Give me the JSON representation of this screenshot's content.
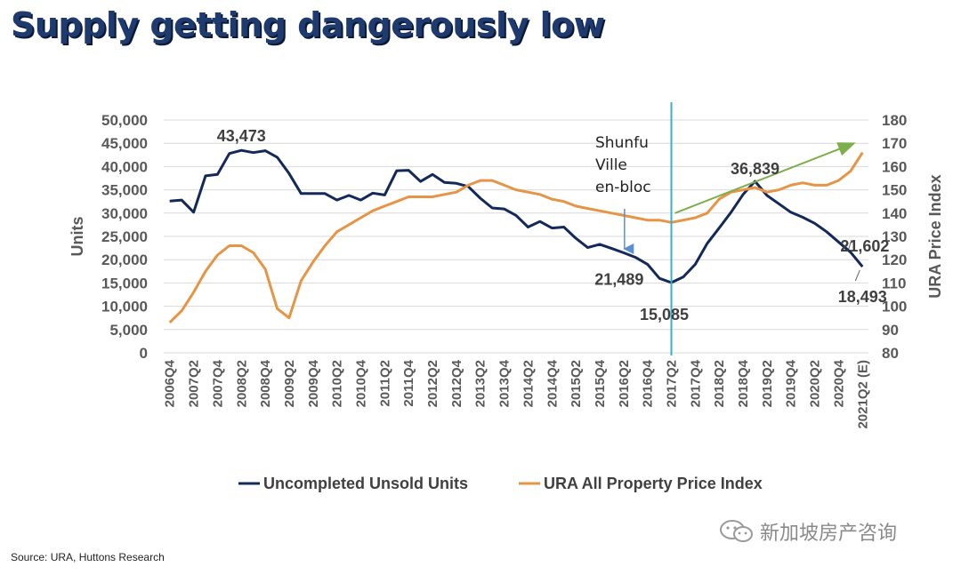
{
  "title": "Supply getting dangerously low",
  "source": "Source: URA, Huttons Research",
  "watermark": "新加坡房产咨询",
  "colors": {
    "units": "#13295a",
    "ppi": "#e69445",
    "event_line": "#39b0c8",
    "trend": "#7cae4a",
    "grid": "#d9d9d9"
  },
  "chart_data": {
    "type": "line",
    "title": "Supply getting dangerously low",
    "xlabel": "",
    "ylabel": "Units",
    "y2label": "URA Price Index",
    "ylim": [
      0,
      50000
    ],
    "y2lim": [
      80,
      180
    ],
    "yticks": [
      "0",
      "5,000",
      "10,000",
      "15,000",
      "20,000",
      "25,000",
      "30,000",
      "35,000",
      "40,000",
      "45,000",
      "50,000"
    ],
    "y2ticks": [
      "80",
      "90",
      "100",
      "110",
      "120",
      "130",
      "140",
      "150",
      "160",
      "170",
      "180"
    ],
    "categories": [
      "2006Q4",
      "2007Q1",
      "2007Q2",
      "2007Q3",
      "2007Q4",
      "2008Q1",
      "2008Q2",
      "2008Q3",
      "2008Q4",
      "2009Q1",
      "2009Q2",
      "2009Q3",
      "2009Q4",
      "2010Q1",
      "2010Q2",
      "2010Q3",
      "2010Q4",
      "2011Q1",
      "2011Q2",
      "2011Q3",
      "2011Q4",
      "2012Q1",
      "2012Q2",
      "2012Q3",
      "2012Q4",
      "2013Q1",
      "2013Q2",
      "2013Q3",
      "2013Q4",
      "2014Q1",
      "2014Q2",
      "2014Q3",
      "2014Q4",
      "2015Q1",
      "2015Q2",
      "2015Q3",
      "2015Q4",
      "2016Q1",
      "2016Q2",
      "2016Q3",
      "2016Q4",
      "2017Q1",
      "2017Q2",
      "2017Q3",
      "2017Q4",
      "2018Q1",
      "2018Q2",
      "2018Q3",
      "2018Q4",
      "2019Q1",
      "2019Q2",
      "2019Q3",
      "2019Q4",
      "2020Q1",
      "2020Q2",
      "2020Q3",
      "2020Q4",
      "2021Q1",
      "2021Q2 (E)"
    ],
    "xtick_labels": [
      "2006Q4",
      "2007Q2",
      "2007Q4",
      "2008Q2",
      "2008Q4",
      "2009Q2",
      "2009Q4",
      "2010Q2",
      "2010Q4",
      "2011Q2",
      "2011Q4",
      "2012Q2",
      "2012Q4",
      "2013Q2",
      "2013Q4",
      "2014Q2",
      "2014Q4",
      "2015Q2",
      "2015Q4",
      "2016Q2",
      "2016Q4",
      "2017Q2",
      "2017Q4",
      "2018Q2",
      "2018Q4",
      "2019Q2",
      "2019Q4",
      "2020Q2",
      "2020Q4",
      "2021Q2 (E)"
    ],
    "series": [
      {
        "name": "Uncompleted Unsold Units",
        "axis": "left",
        "values": [
          32600,
          32800,
          30200,
          38000,
          38300,
          42800,
          43473,
          43000,
          43400,
          42000,
          38500,
          34200,
          34200,
          34200,
          32800,
          33800,
          32800,
          34300,
          33900,
          39100,
          39200,
          36800,
          38300,
          36600,
          36400,
          35700,
          33200,
          31100,
          30900,
          29500,
          27000,
          28200,
          26800,
          27000,
          24600,
          22600,
          23300,
          22400,
          21489,
          20500,
          19000,
          16000,
          15085,
          16300,
          19000,
          23500,
          26800,
          30200,
          34000,
          36839,
          33800,
          32000,
          30200,
          29100,
          27800,
          26000,
          23800,
          21602,
          18493
        ]
      },
      {
        "name": "URA All Property Price Index",
        "axis": "right",
        "values": [
          93,
          98,
          106,
          115,
          122,
          126,
          126,
          123,
          116,
          99,
          95,
          111,
          119,
          126,
          132,
          135,
          138,
          141,
          143,
          145,
          147,
          147,
          147,
          148,
          149,
          152,
          154,
          154,
          152,
          150,
          149,
          148,
          146,
          145,
          143,
          142,
          141,
          140,
          139,
          138,
          137,
          137,
          136,
          137,
          138,
          140,
          146,
          149,
          150,
          151,
          149,
          150,
          152,
          153,
          152,
          152,
          154,
          158,
          166
        ]
      }
    ],
    "annotations": [
      {
        "text": "43,473",
        "series": "Uncompleted Unsold Units",
        "category": "2008Q2"
      },
      {
        "text": "21,489",
        "series": "Uncompleted Unsold Units",
        "category": "2016Q2"
      },
      {
        "text": "15,085",
        "series": "Uncompleted Unsold Units",
        "category": "2017Q2"
      },
      {
        "text": "36,839",
        "series": "Uncompleted Unsold Units",
        "category": "2019Q1"
      },
      {
        "text": "21,602",
        "series": "Uncompleted Unsold Units",
        "category": "2021Q1"
      },
      {
        "text": "18,493",
        "series": "Uncompleted Unsold Units",
        "category": "2021Q2 (E)"
      }
    ],
    "event": {
      "category": "2017Q2",
      "lines": [
        "Shunfu",
        "Ville",
        "en-bloc"
      ]
    },
    "trend": {
      "from_category": "2017Q2",
      "to_category": "2021Q1",
      "from_value": 140,
      "to_value": 170,
      "axis": "right"
    },
    "legend": [
      "Uncompleted Unsold Units",
      "URA All Property Price Index"
    ],
    "legend_position": "bottom"
  }
}
